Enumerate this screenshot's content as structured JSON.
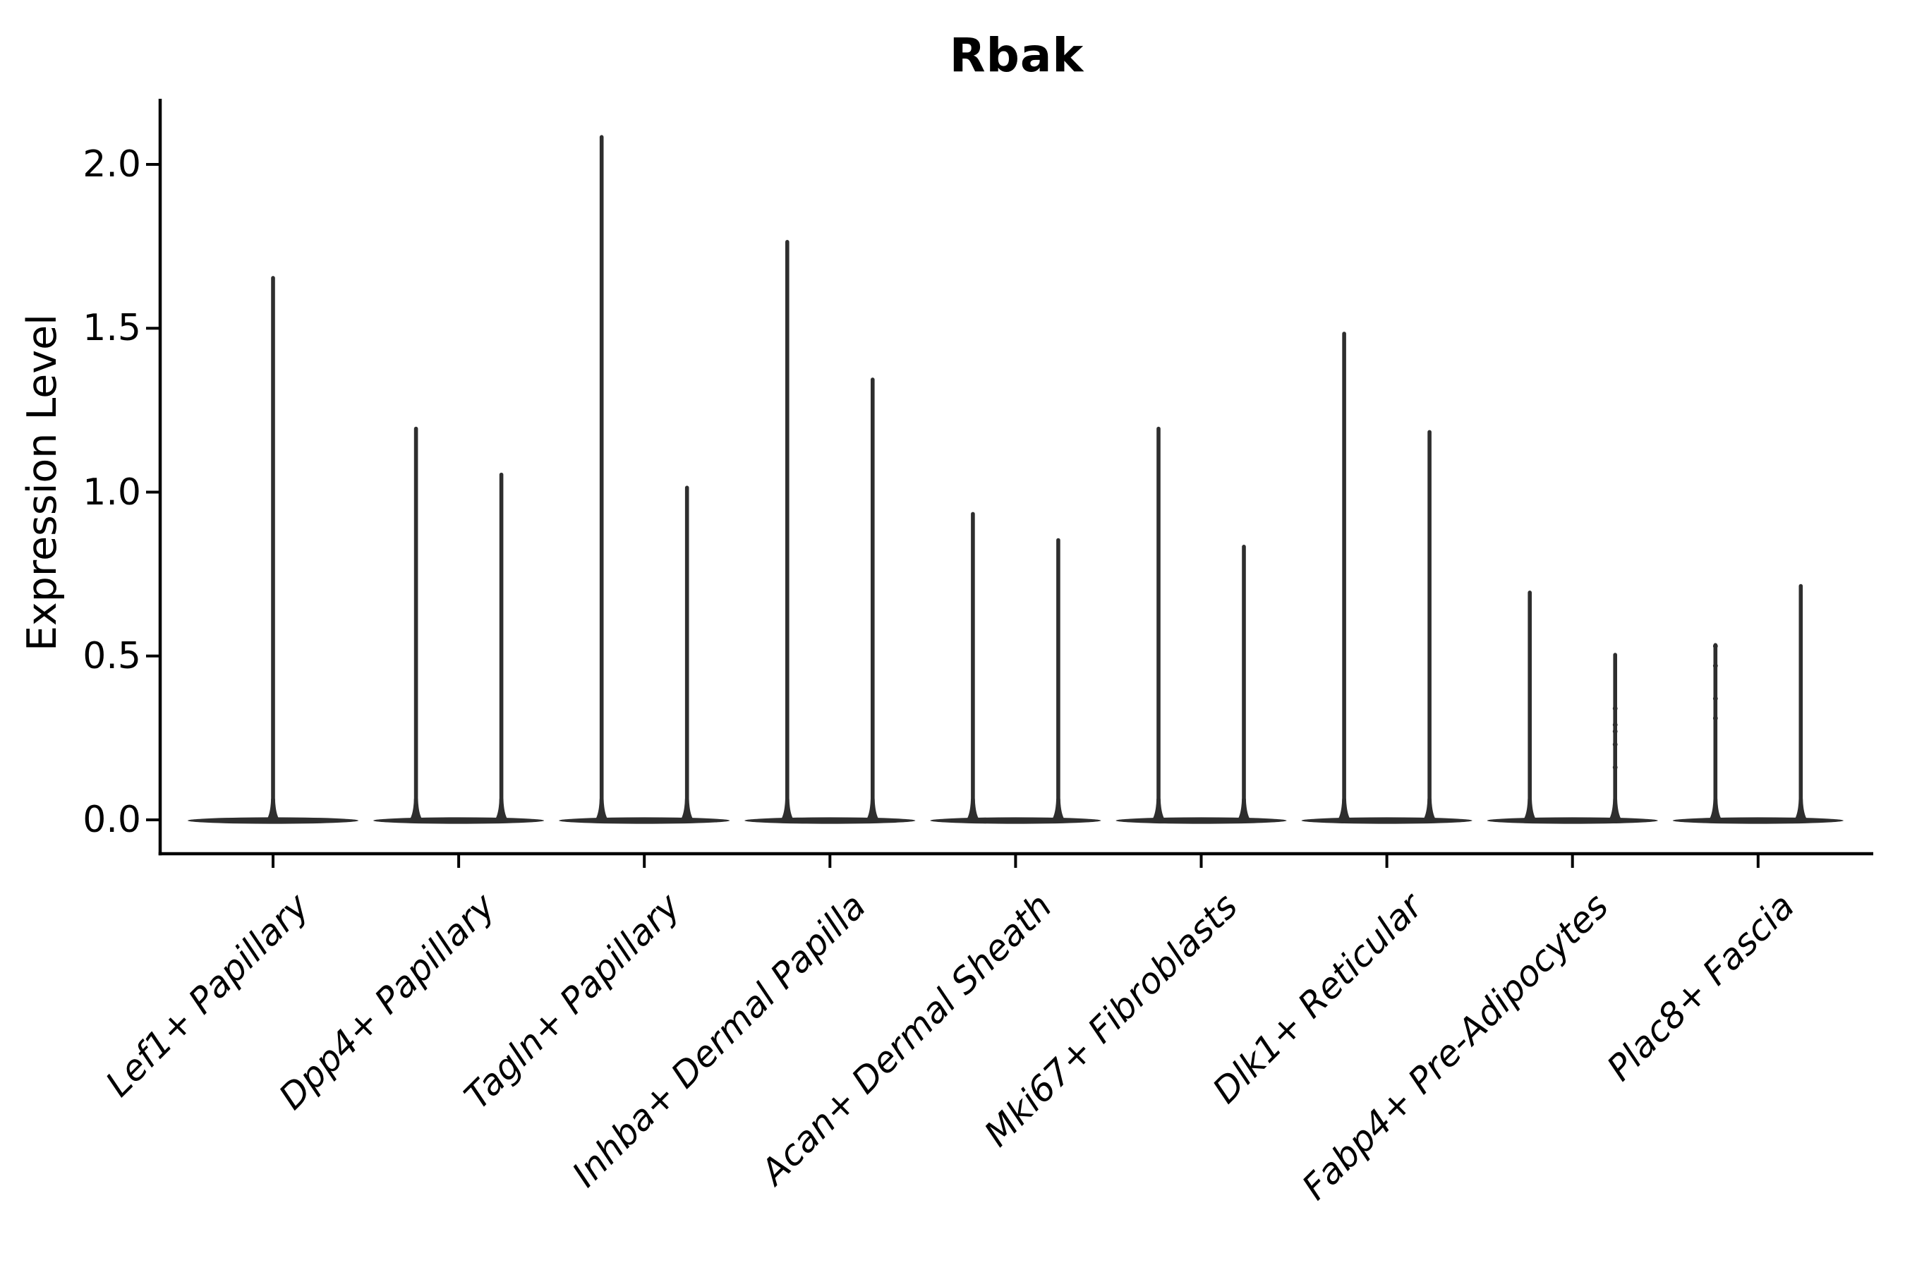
{
  "chart_data": {
    "type": "violin",
    "title": "Rbak",
    "ylabel": "Expression Level",
    "xlabel": "",
    "y_ticks": [
      "2.0",
      "1.5",
      "1.0",
      "0.5",
      "0.0"
    ],
    "y_tick_values": [
      2.0,
      1.5,
      1.0,
      0.5,
      0.0
    ],
    "ylim": [
      -0.1,
      2.2
    ],
    "grid": false,
    "legend": "none",
    "x_tick_rotation_deg": 45,
    "note": "Seurat-style violin plot; expression mass at 0 gives flat bases with thin spikes to each violin max",
    "categories": [
      {
        "label": "Lef1+ Papillary",
        "violins": [
          {
            "max": 1.66
          }
        ]
      },
      {
        "label": "Dpp4+ Papillary",
        "violins": [
          {
            "max": 1.2
          },
          {
            "max": 1.06
          }
        ]
      },
      {
        "label": "Tagln+ Papillary",
        "violins": [
          {
            "max": 2.09
          },
          {
            "max": 1.02
          }
        ]
      },
      {
        "label": "Inhba+ Dermal Papilla",
        "violins": [
          {
            "max": 1.77
          },
          {
            "max": 1.35
          }
        ]
      },
      {
        "label": "Acan+ Dermal Sheath",
        "violins": [
          {
            "max": 0.94
          },
          {
            "max": 0.86
          }
        ]
      },
      {
        "label": "Mki67+ Fibroblasts",
        "violins": [
          {
            "max": 1.2
          },
          {
            "max": 0.84
          }
        ]
      },
      {
        "label": "Dlk1+ Reticular",
        "violins": [
          {
            "max": 1.49
          },
          {
            "max": 1.19
          }
        ]
      },
      {
        "label": "Fabp4+ Pre-Adipocytes",
        "violins": [
          {
            "max": 0.7
          },
          {
            "max": 0.51,
            "points": [
              0.34,
              0.29,
              0.27,
              0.23,
              0.16
            ]
          }
        ]
      },
      {
        "label": "Plac8+ Fascia",
        "violins": [
          {
            "max": 0.54,
            "points": [
              0.53,
              0.47,
              0.37,
              0.31
            ]
          },
          {
            "max": 0.72
          }
        ]
      }
    ],
    "colors": {
      "violin": "#2e2e2e",
      "axis": "#000000",
      "text": "#000000",
      "background": "#ffffff"
    }
  }
}
